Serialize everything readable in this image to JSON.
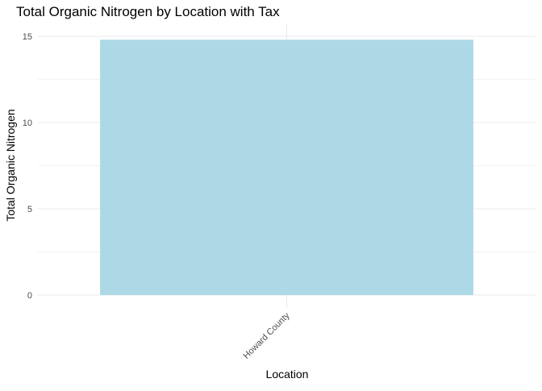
{
  "chart_data": {
    "type": "bar",
    "title": "Total Organic Nitrogen by Location with Tax",
    "xlabel": "Location",
    "ylabel": "Total Organic Nitrogen",
    "categories": [
      "Howard County"
    ],
    "values": [
      14.8
    ],
    "ylim": [
      0,
      15.5
    ],
    "yticks": [
      0,
      5,
      10,
      15
    ],
    "grid": true,
    "legend": "none",
    "bar_color": "#add8e6",
    "x_tick_rotation": "45 degrees"
  }
}
